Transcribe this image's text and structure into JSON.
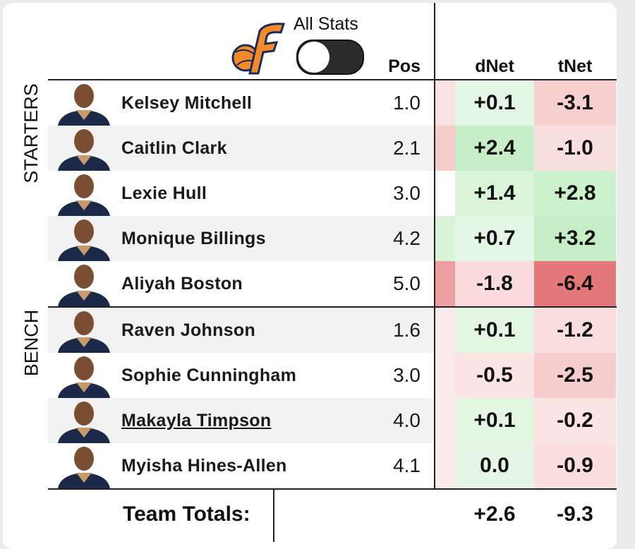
{
  "toggle_label": "All Stats",
  "headers": {
    "pos": "Pos",
    "dnet": "dNet",
    "tnet": "tNet"
  },
  "sections": [
    {
      "label": "STARTERS",
      "rows": [
        0,
        1,
        2,
        3,
        4
      ]
    },
    {
      "label": "BENCH",
      "rows": [
        5,
        6,
        7,
        8
      ]
    }
  ],
  "rows": [
    {
      "name": "Kelsey Mitchell",
      "pos": "1.0",
      "dnet": "+0.1",
      "tnet": "-3.1",
      "dnet_color": "#e4f7e4",
      "tnet_color": "#f7cfcf"
    },
    {
      "name": "Caitlin Clark",
      "pos": "2.1",
      "dnet": "+2.4",
      "tnet": "-1.0",
      "dnet_color": "#c8eec8",
      "tnet_color": "#fadfdf"
    },
    {
      "name": "Lexie Hull",
      "pos": "3.0",
      "dnet": "+1.4",
      "tnet": "+2.8",
      "dnet_color": "#daf4da",
      "tnet_color": "#cdf0cd"
    },
    {
      "name": "Monique Billings",
      "pos": "4.2",
      "dnet": "+0.7",
      "tnet": "+3.2",
      "dnet_color": "#e4f7e4",
      "tnet_color": "#c6eec6"
    },
    {
      "name": "Aliyah Boston",
      "pos": "5.0",
      "dnet": "-1.8",
      "tnet": "-6.4",
      "dnet_color": "#fadcdc",
      "tnet_color": "#e57878"
    },
    {
      "name": "Raven Johnson",
      "pos": "1.6",
      "dnet": "+0.1",
      "tnet": "-1.2",
      "dnet_color": "#e2f6e2",
      "tnet_color": "#fadede"
    },
    {
      "name": "Sophie Cunningham",
      "pos": "3.0",
      "dnet": "-0.5",
      "tnet": "-2.5",
      "dnet_color": "#fbe4e4",
      "tnet_color": "#f6cdcd"
    },
    {
      "name": "Makayla Timpson",
      "pos": "4.0",
      "dnet": "+0.1",
      "tnet": "-0.2",
      "dnet_color": "#e2f6e2",
      "tnet_color": "#fbe4e4",
      "link": true
    },
    {
      "name": "Myisha Hines-Allen",
      "pos": "4.1",
      "dnet": "0.0",
      "tnet": "-0.9",
      "dnet_color": "#e6f7e6",
      "tnet_color": "#fbdfdf"
    }
  ],
  "totals": {
    "label": "Team Totals:",
    "dnet": "+2.6",
    "tnet": "-9.3"
  }
}
